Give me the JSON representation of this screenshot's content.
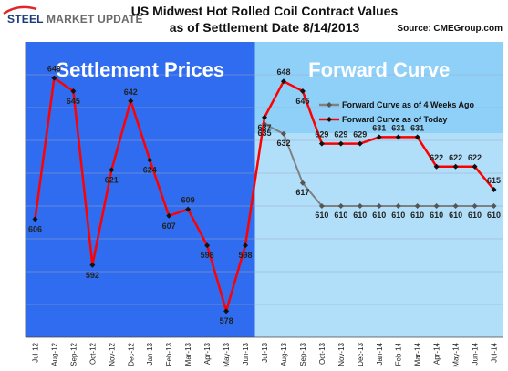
{
  "header": {
    "logo_first": "STEEL",
    "logo_second": "MARKET UPDATE",
    "title_line1": "US Midwest Hot Rolled Coil Contract  Values",
    "title_line2": "as of Settlement Date 8/14/2013",
    "source": "Source: CMEGroup.com"
  },
  "chart_data": {
    "type": "line",
    "panels": [
      {
        "label": "Settlement Prices",
        "color": "#2f6cf0"
      },
      {
        "label": "Forward Curve",
        "color": "#8fd0f8"
      }
    ],
    "categories": [
      "Jul-12",
      "Aug-12",
      "Sep-12",
      "Oct-12",
      "Nov-12",
      "Dec-12",
      "Jan-13",
      "Feb-13",
      "Mar-13",
      "Apr-13",
      "May-13",
      "Jun-13",
      "Jul-13",
      "Aug-13",
      "Sep-13",
      "Oct-13",
      "Nov-13",
      "Dec-13",
      "Jan-14",
      "Feb-14",
      "Mar-14",
      "Apr-14",
      "May-14",
      "Jun-14",
      "Jul-14"
    ],
    "series": [
      {
        "name": "Forward Curve as of 4 Weeks Ago",
        "color": "#808080",
        "values": [
          null,
          null,
          null,
          null,
          null,
          null,
          null,
          null,
          null,
          null,
          null,
          null,
          635,
          632,
          617,
          610,
          610,
          610,
          610,
          610,
          610,
          610,
          610,
          610,
          610
        ]
      },
      {
        "name": "Forward Curve as of Today",
        "color": "#ff0000",
        "values": [
          606,
          649,
          645,
          592,
          621,
          642,
          624,
          607,
          609,
          598,
          578,
          598,
          637,
          648,
          645,
          629,
          629,
          629,
          631,
          631,
          631,
          622,
          622,
          622,
          615
        ]
      }
    ],
    "data_labels_today": [
      "606",
      "649",
      "645",
      "592",
      "621",
      "642",
      "624",
      "607",
      "609",
      "598",
      "578",
      "598",
      "637",
      "648",
      "645",
      "629",
      "629",
      "629",
      "631",
      "631",
      "631",
      "622",
      "622",
      "622",
      "615"
    ],
    "data_labels_4wk": [
      "635",
      "632",
      "617",
      "610",
      "610",
      "610",
      "610",
      "610",
      "610",
      "610",
      "610",
      "610",
      "610"
    ],
    "ylim": [
      570,
      660
    ],
    "grid": true,
    "legend_position": "top-right"
  }
}
